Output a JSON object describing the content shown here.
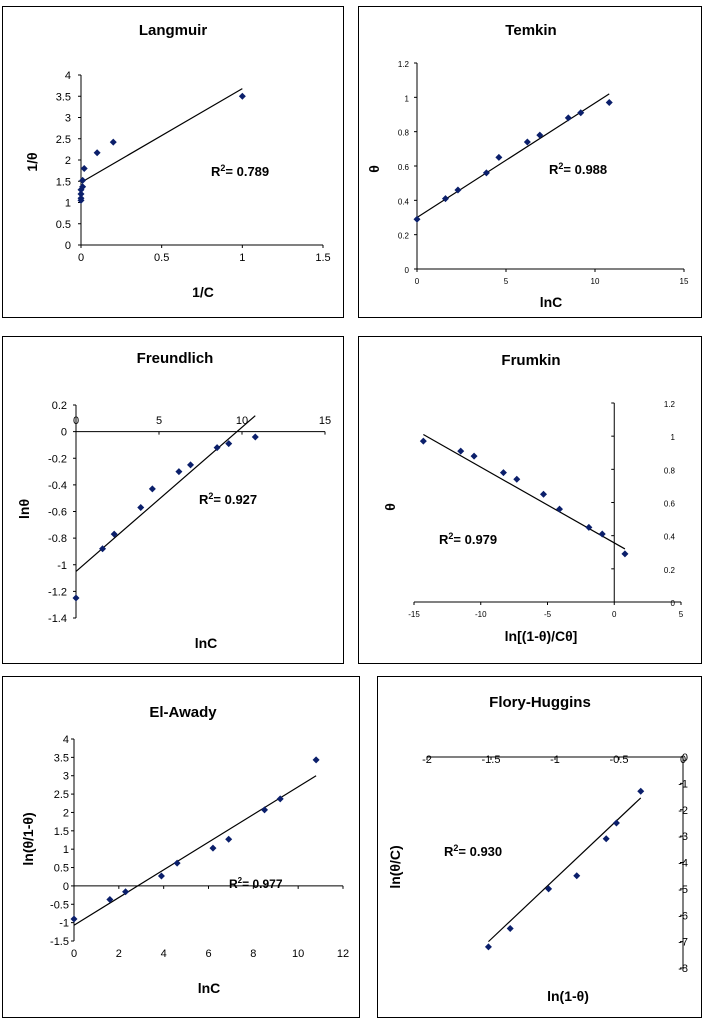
{
  "chart_data": [
    {
      "id": "langmuir",
      "type": "scatter",
      "title": "Langmuir",
      "xlabel": "1/C",
      "ylabel": "1/θ",
      "r2_label": "R",
      "r2_value": "= 0.789",
      "xlim": [
        0,
        1.5
      ],
      "ylim": [
        0,
        4
      ],
      "xticks": [
        0,
        0.5,
        1,
        1.5
      ],
      "xtick_labels": [
        "0",
        "0.5",
        "1",
        "1.5"
      ],
      "yticks": [
        0,
        0.5,
        1,
        1.5,
        2,
        2.5,
        3,
        3.5,
        4
      ],
      "ytick_labels": [
        "0",
        "0.5",
        "1",
        "1.5",
        "2",
        "2.5",
        "3",
        "3.5",
        "4"
      ],
      "points": [
        [
          0.0,
          1.05
        ],
        [
          0.0,
          1.1
        ],
        [
          0.0,
          1.2
        ],
        [
          0.0,
          1.3
        ],
        [
          0.01,
          1.37
        ],
        [
          0.01,
          1.52
        ],
        [
          0.02,
          1.8
        ],
        [
          0.1,
          2.17
        ],
        [
          0.2,
          2.42
        ],
        [
          1.0,
          3.5
        ]
      ],
      "fit_line": [
        [
          0,
          1.47
        ],
        [
          1,
          3.68
        ]
      ]
    },
    {
      "id": "temkin",
      "type": "scatter",
      "title": "Temkin",
      "xlabel": "lnC",
      "ylabel": "θ",
      "r2_label": "R",
      "r2_value": "= 0.988",
      "xlim": [
        0,
        15
      ],
      "ylim": [
        0,
        1.2
      ],
      "xticks": [
        0,
        5,
        10,
        15
      ],
      "xtick_labels": [
        "0",
        "5",
        "10",
        "15"
      ],
      "yticks": [
        0,
        0.2,
        0.4,
        0.6,
        0.8,
        1,
        1.2
      ],
      "ytick_labels": [
        "0",
        "0.2",
        "0.4",
        "0.6",
        "0.8",
        "1",
        "1.2"
      ],
      "points": [
        [
          0,
          0.29
        ],
        [
          1.6,
          0.41
        ],
        [
          2.3,
          0.46
        ],
        [
          3.9,
          0.56
        ],
        [
          4.6,
          0.65
        ],
        [
          6.2,
          0.74
        ],
        [
          6.9,
          0.78
        ],
        [
          8.5,
          0.88
        ],
        [
          9.2,
          0.91
        ],
        [
          10.8,
          0.97
        ]
      ],
      "fit_line": [
        [
          0,
          0.3
        ],
        [
          10.8,
          1.02
        ]
      ]
    },
    {
      "id": "freundlich",
      "type": "scatter",
      "title": "Freundlich",
      "xlabel": "lnC",
      "ylabel": "lnθ",
      "r2_label": "R",
      "r2_value": "= 0.927",
      "xlim": [
        0,
        15
      ],
      "ylim": [
        -1.4,
        0.2
      ],
      "xticks": [
        0,
        5,
        10,
        15
      ],
      "xtick_labels": [
        "0",
        "5",
        "10",
        "15"
      ],
      "yticks": [
        -1.4,
        -1.2,
        -1,
        -0.8,
        -0.6,
        -0.4,
        -0.2,
        0,
        0.2
      ],
      "ytick_labels": [
        "-1.4",
        "-1.2",
        "-1",
        "-0.8",
        "-0.6",
        "-0.4",
        "-0.2",
        "0",
        "0.2"
      ],
      "points": [
        [
          0,
          -1.25
        ],
        [
          1.6,
          -0.88
        ],
        [
          2.3,
          -0.77
        ],
        [
          3.9,
          -0.57
        ],
        [
          4.6,
          -0.43
        ],
        [
          6.2,
          -0.3
        ],
        [
          6.9,
          -0.25
        ],
        [
          8.5,
          -0.12
        ],
        [
          9.2,
          -0.09
        ],
        [
          10.8,
          -0.04
        ]
      ],
      "fit_line": [
        [
          0,
          -1.05
        ],
        [
          10.8,
          0.12
        ]
      ]
    },
    {
      "id": "frumkin",
      "type": "scatter",
      "title": "Frumkin",
      "xlabel": "ln[(1-θ)/Cθ]",
      "ylabel": "θ",
      "r2_label": "R",
      "r2_value": "= 0.979",
      "xlim": [
        -15,
        5
      ],
      "ylim": [
        0,
        1.2
      ],
      "xticks": [
        -15,
        -10,
        -5,
        0,
        5
      ],
      "xtick_labels": [
        "-15",
        "-10",
        "-5",
        "0",
        "5"
      ],
      "yticks": [
        0,
        0.2,
        0.4,
        0.6,
        0.8,
        1,
        1.2
      ],
      "ytick_labels": [
        "0",
        "0.2",
        "0.4",
        "0.6",
        "0.8",
        "1",
        "1.2"
      ],
      "points": [
        [
          -14.3,
          0.97
        ],
        [
          -11.5,
          0.91
        ],
        [
          -10.5,
          0.88
        ],
        [
          -8.3,
          0.78
        ],
        [
          -7.3,
          0.74
        ],
        [
          -5.3,
          0.65
        ],
        [
          -4.1,
          0.56
        ],
        [
          -1.9,
          0.45
        ],
        [
          -0.9,
          0.41
        ],
        [
          0.8,
          0.29
        ]
      ],
      "fit_line": [
        [
          -14.3,
          1.01
        ],
        [
          0.8,
          0.32
        ]
      ]
    },
    {
      "id": "el-awady",
      "type": "scatter",
      "title": "El-Awady",
      "xlabel": "lnC",
      "ylabel": "ln(θ/1-θ)",
      "r2_label": "R",
      "r2_value": "= 0.977",
      "xlim": [
        0,
        12
      ],
      "ylim": [
        -1.5,
        4
      ],
      "xticks": [
        0,
        2,
        4,
        6,
        8,
        10,
        12
      ],
      "xtick_labels": [
        "0",
        "2",
        "4",
        "6",
        "8",
        "10",
        "12"
      ],
      "yticks": [
        -1.5,
        -1,
        -0.5,
        0,
        0.5,
        1,
        1.5,
        2,
        2.5,
        3,
        3.5,
        4
      ],
      "ytick_labels": [
        "-1.5",
        "-1",
        "-0.5",
        "0",
        "0.5",
        "1",
        "1.5",
        "2",
        "2.5",
        "3",
        "3.5",
        "4"
      ],
      "points": [
        [
          0,
          -0.9
        ],
        [
          1.6,
          -0.37
        ],
        [
          2.3,
          -0.16
        ],
        [
          3.9,
          0.27
        ],
        [
          4.6,
          0.62
        ],
        [
          6.2,
          1.03
        ],
        [
          6.9,
          1.27
        ],
        [
          8.5,
          2.07
        ],
        [
          9.2,
          2.37
        ],
        [
          10.8,
          3.43
        ]
      ],
      "fit_line": [
        [
          0,
          -1.07
        ],
        [
          10.8,
          3.0
        ]
      ]
    },
    {
      "id": "flory-huggins",
      "type": "scatter",
      "title": "Flory-Huggins",
      "xlabel": "ln(1-θ)",
      "ylabel": "ln(θ/C)",
      "r2_label": "R",
      "r2_value": "= 0.930",
      "xlim": [
        -2,
        0
      ],
      "ylim": [
        -8,
        0
      ],
      "xticks": [
        -2,
        -1.5,
        -1,
        -0.5,
        0
      ],
      "xtick_labels": [
        "-2",
        "-1.5",
        "-1",
        "-0.5",
        "0"
      ],
      "yticks": [
        -8,
        -7,
        -6,
        -5,
        -4,
        -3,
        -2,
        -1,
        0
      ],
      "ytick_labels": [
        "-8",
        "-7",
        "-6",
        "-5",
        "-4",
        "-3",
        "-2",
        "-1",
        "0"
      ],
      "points": [
        [
          -1.52,
          -7.2
        ],
        [
          -1.35,
          -6.5
        ],
        [
          -1.05,
          -5.0
        ],
        [
          -0.83,
          -4.5
        ],
        [
          -0.6,
          -3.1
        ],
        [
          -0.52,
          -2.5
        ],
        [
          -0.33,
          -1.3
        ]
      ],
      "fit_line": [
        [
          -1.52,
          -7.0
        ],
        [
          -0.33,
          -1.55
        ]
      ]
    }
  ]
}
